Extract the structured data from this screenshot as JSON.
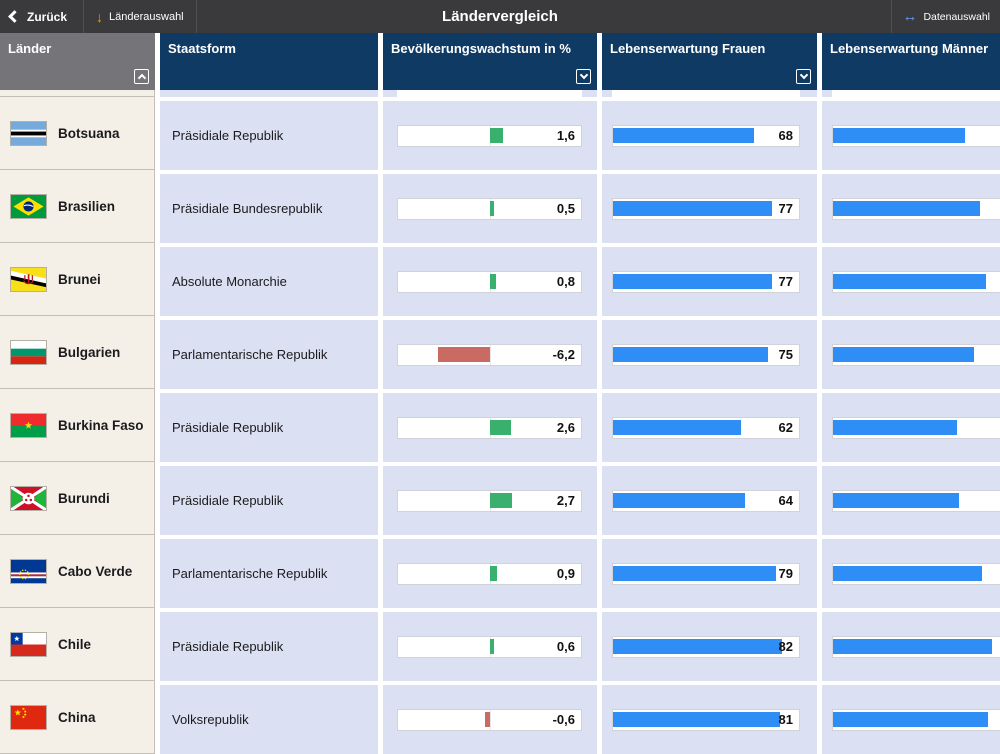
{
  "topbar": {
    "back": "Zurück",
    "country_select": "Länderauswahl",
    "title": "Ländervergleich",
    "data_select": "Datenauswahl"
  },
  "header": {
    "laender": "Länder",
    "staatsform": "Staatsform",
    "growth": "Bevölkerungswachstum in %",
    "women": "Lebenserwartung Frauen",
    "men": "Lebenserwartung Männer"
  },
  "colors": {
    "topbar_bg": "#3a3a3c",
    "header_gray": "#747479",
    "header_blue": "#0f3a64",
    "row_left_bg": "#f4f0e8",
    "row_data_bg": "#dbe0f2",
    "bar_blue": "#2e8ef5",
    "growth_positive_green": "#39b06e",
    "growth_negative_red": "#c96a63",
    "accent_orange_arrow": "#ff9500",
    "accent_blue_arrow": "#5a9cf8"
  },
  "rows": [
    {
      "country": "Botsuana",
      "staatsform": "Präsidiale Republik",
      "growth": 1.6,
      "growth_label": "1,6",
      "women": 68,
      "women_label": "68",
      "men": 64
    },
    {
      "country": "Brasilien",
      "staatsform": "Präsidiale Bundesrepublik",
      "growth": 0.5,
      "growth_label": "0,5",
      "women": 77,
      "women_label": "77",
      "men": 71
    },
    {
      "country": "Brunei",
      "staatsform": "Absolute Monarchie",
      "growth": 0.8,
      "growth_label": "0,8",
      "women": 77,
      "women_label": "77",
      "men": 74
    },
    {
      "country": "Bulgarien",
      "staatsform": "Parlamentarische Republik",
      "growth": -6.2,
      "growth_label": "-6,2",
      "women": 75,
      "women_label": "75",
      "men": 68
    },
    {
      "country": "Burkina Faso",
      "staatsform": "Präsidiale Republik",
      "growth": 2.6,
      "growth_label": "2,6",
      "women": 62,
      "women_label": "62",
      "men": 60
    },
    {
      "country": "Burundi",
      "staatsform": "Präsidiale Republik",
      "growth": 2.7,
      "growth_label": "2,7",
      "women": 64,
      "women_label": "64",
      "men": 61
    },
    {
      "country": "Cabo Verde",
      "staatsform": "Parlamentarische Republik",
      "growth": 0.9,
      "growth_label": "0,9",
      "women": 79,
      "women_label": "79",
      "men": 72
    },
    {
      "country": "Chile",
      "staatsform": "Präsidiale Republik",
      "growth": 0.6,
      "growth_label": "0,6",
      "women": 82,
      "women_label": "82",
      "men": 77
    },
    {
      "country": "China",
      "staatsform": "Volksrepublik",
      "growth": -0.6,
      "growth_label": "-0,6",
      "women": 81,
      "women_label": "81",
      "men": 75
    }
  ]
}
